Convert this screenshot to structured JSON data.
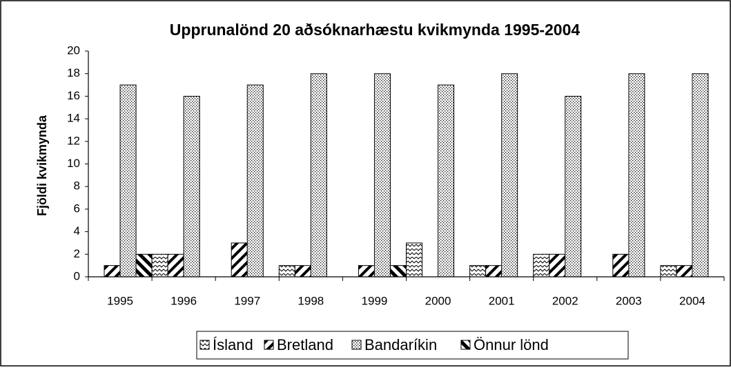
{
  "chart_data": {
    "type": "bar",
    "title": "Upprunalönd 20 aðsóknarhæstu kvikmynda 1995-2004",
    "y_label": "Fjöldi kvikmynda",
    "categories": [
      "1995",
      "1996",
      "1997",
      "1998",
      "1999",
      "2000",
      "2001",
      "2002",
      "2003",
      "2004"
    ],
    "series": [
      {
        "name": "Ísland",
        "color": "#000000",
        "pattern": "zigzag",
        "values": [
          0,
          2,
          0,
          1,
          0,
          3,
          1,
          2,
          0,
          1
        ]
      },
      {
        "name": "Bretland",
        "color": "#000000",
        "pattern": "diagonal-up",
        "values": [
          1,
          2,
          3,
          1,
          1,
          0,
          1,
          2,
          2,
          1
        ]
      },
      {
        "name": "Bandaríkin",
        "color": "#000000",
        "pattern": "dots",
        "values": [
          17,
          16,
          17,
          18,
          18,
          17,
          18,
          16,
          18,
          18
        ]
      },
      {
        "name": "Önnur lönd",
        "color": "#000000",
        "pattern": "diagonal-down",
        "values": [
          2,
          0,
          0,
          0,
          1,
          0,
          0,
          0,
          0,
          0
        ]
      }
    ],
    "ylim": [
      0,
      20
    ],
    "yticks": [
      0,
      2,
      4,
      6,
      8,
      10,
      12,
      14,
      16,
      18,
      20
    ],
    "grid": false,
    "legend": "bottom"
  }
}
